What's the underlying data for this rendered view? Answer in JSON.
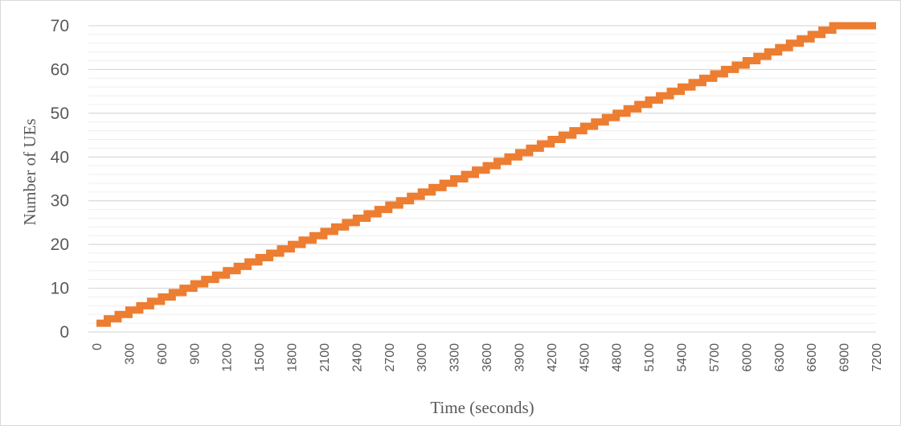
{
  "chart_data": {
    "type": "line",
    "title": "",
    "xlabel": "Time (seconds)",
    "ylabel": "Number of UEs",
    "xlim": [
      0,
      7200
    ],
    "ylim": [
      0,
      70
    ],
    "x_ticks": [
      "0",
      "300",
      "600",
      "900",
      "1200",
      "1500",
      "1800",
      "2100",
      "2400",
      "2700",
      "3000",
      "3300",
      "3600",
      "3900",
      "4200",
      "4500",
      "4800",
      "5100",
      "5400",
      "5700",
      "6000",
      "6300",
      "6600",
      "6900",
      "7200"
    ],
    "y_ticks": [
      "0",
      "10",
      "20",
      "30",
      "40",
      "50",
      "60",
      "70"
    ],
    "grid": {
      "major_y": true,
      "minor_y": true,
      "minor_step": 2
    },
    "legend": "none",
    "series": [
      {
        "color": "#ED7D31",
        "step": true,
        "x": [
          0,
          100,
          200,
          300,
          400,
          500,
          600,
          700,
          800,
          900,
          1000,
          1100,
          1200,
          1300,
          1400,
          1500,
          1600,
          1700,
          1800,
          1900,
          2000,
          2100,
          2200,
          2300,
          2400,
          2500,
          2600,
          2700,
          2800,
          2900,
          3000,
          3100,
          3200,
          3300,
          3400,
          3500,
          3600,
          3700,
          3800,
          3900,
          4000,
          4100,
          4200,
          4300,
          4400,
          4500,
          4600,
          4700,
          4800,
          4900,
          5000,
          5100,
          5200,
          5300,
          5400,
          5500,
          5600,
          5700,
          5800,
          5900,
          6000,
          6100,
          6200,
          6300,
          6400,
          6500,
          6600,
          6700,
          6800,
          7200
        ],
        "y": [
          2,
          3,
          4,
          5,
          6,
          7,
          8,
          9,
          10,
          11,
          12,
          13,
          14,
          15,
          16,
          17,
          18,
          19,
          20,
          21,
          22,
          23,
          24,
          25,
          26,
          27,
          28,
          29,
          30,
          31,
          32,
          33,
          34,
          35,
          36,
          37,
          38,
          39,
          40,
          41,
          42,
          43,
          44,
          45,
          46,
          47,
          48,
          49,
          50,
          51,
          52,
          53,
          54,
          55,
          56,
          57,
          58,
          59,
          60,
          61,
          62,
          63,
          64,
          65,
          66,
          67,
          68,
          69,
          70,
          70
        ]
      }
    ]
  }
}
